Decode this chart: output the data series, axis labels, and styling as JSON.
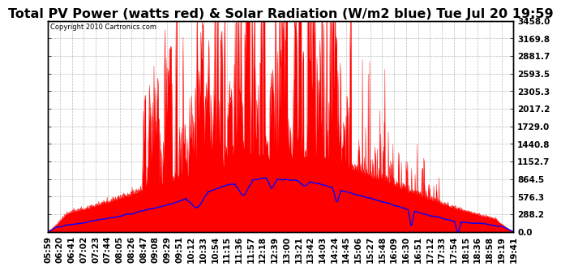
{
  "title": "Total PV Power (watts red) & Solar Radiation (W/m2 blue) Tue Jul 20 19:59",
  "copyright_text": "Copyright 2010 Cartronics.com",
  "yticks": [
    0.0,
    288.2,
    576.3,
    864.5,
    1152.7,
    1440.8,
    1729.0,
    2017.2,
    2305.3,
    2593.5,
    2881.7,
    3169.8,
    3458.0
  ],
  "ymax": 3458.0,
  "ymin": 0.0,
  "bg_color": "#ffffff",
  "grid_color": "#aaaaaa",
  "red_color": "#ff0000",
  "blue_color": "#0000ff",
  "title_fontsize": 11.5,
  "tick_fontsize": 7.5,
  "xtick_labels": [
    "05:59",
    "06:20",
    "06:41",
    "07:02",
    "07:23",
    "07:44",
    "08:05",
    "08:26",
    "08:47",
    "09:08",
    "09:29",
    "09:51",
    "10:12",
    "10:33",
    "10:54",
    "11:15",
    "11:36",
    "11:57",
    "12:18",
    "12:39",
    "13:00",
    "13:21",
    "13:42",
    "14:03",
    "14:24",
    "14:45",
    "15:06",
    "15:27",
    "15:48",
    "16:09",
    "16:30",
    "16:51",
    "17:12",
    "17:33",
    "17:54",
    "18:15",
    "18:36",
    "18:58",
    "19:19",
    "19:41"
  ]
}
